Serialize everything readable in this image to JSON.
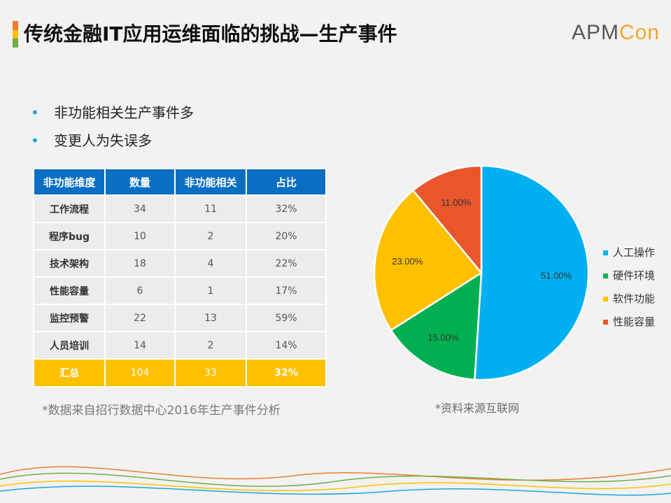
{
  "title": "传统金融IT应用运维面临的挑战—生产事件",
  "logo": {
    "part1": "APM",
    "part2": "Con"
  },
  "bullets": [
    "非功能相关生产事件多",
    "变更人为失误多"
  ],
  "table": {
    "headers": [
      "非功能维度",
      "数量",
      "非功能相关",
      "占比"
    ],
    "rows": [
      [
        "工作流程",
        "34",
        "11",
        "32%"
      ],
      [
        "程序bug",
        "10",
        "2",
        "20%"
      ],
      [
        "技术架构",
        "18",
        "4",
        "22%"
      ],
      [
        "性能容量",
        "6",
        "1",
        "17%"
      ],
      [
        "监控预警",
        "22",
        "13",
        "59%"
      ],
      [
        "人员培训",
        "14",
        "2",
        "14%"
      ]
    ],
    "total": [
      "汇总",
      "104",
      "33",
      "32%"
    ]
  },
  "note_left": "*数据来自招行数据中心2016年生产事件分析",
  "note_right": "*资料来源互联网",
  "colors": {
    "header_blue": "#0a6fc2",
    "total_yellow": "#ffc000",
    "bullet_blue": "#1aa5dc",
    "title_bar": [
      "#ed7d31",
      "#ffc000",
      "#70ad47"
    ]
  },
  "chart_data": {
    "type": "pie",
    "labels": [
      "人工操作",
      "硬件环境",
      "软件功能",
      "性能容量"
    ],
    "values": [
      51.0,
      15.0,
      23.0,
      11.0
    ],
    "value_labels": [
      "51.00%",
      "15.00%",
      "23.00%",
      "11.00%"
    ],
    "colors": [
      "#00b0f0",
      "#00b050",
      "#ffc000",
      "#e8562a"
    ],
    "start": "12 o'clock, clockwise",
    "legend_position": "right"
  }
}
